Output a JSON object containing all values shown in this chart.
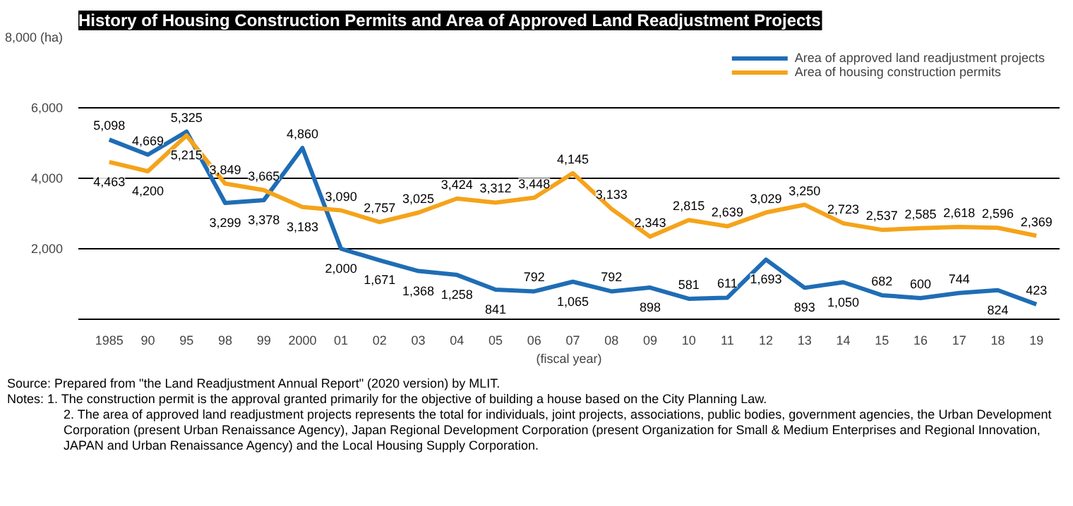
{
  "chart_data": {
    "type": "line",
    "title": "History of Housing Construction Permits and Area of Approved Land Readjustment Projects",
    "xlabel": "(fiscal year)",
    "categories": [
      "1985",
      "90",
      "95",
      "98",
      "99",
      "2000",
      "01",
      "02",
      "03",
      "04",
      "05",
      "06",
      "07",
      "08",
      "09",
      "10",
      "11",
      "12",
      "13",
      "14",
      "15",
      "16",
      "17",
      "18",
      "19"
    ],
    "series": [
      {
        "name": "Area of approved land readjustment projects",
        "color": "#1f6db5",
        "values": [
          5098,
          4669,
          5325,
          3299,
          3378,
          4860,
          2000,
          1671,
          1368,
          1258,
          841,
          792,
          1065,
          792,
          898,
          581,
          611,
          1693,
          893,
          1050,
          682,
          600,
          744,
          824,
          423
        ],
        "value_labels": [
          "5,098",
          "4,669",
          "5,325",
          "3,299",
          "3,378",
          "4,860",
          "2,000",
          "1,671",
          "1,368",
          "1,258",
          "841",
          "792",
          "1,065",
          "792",
          "898",
          "581",
          "611",
          "1,693",
          "893",
          "1,050",
          "682",
          "600",
          "744",
          "824",
          "423"
        ]
      },
      {
        "name": "Area of housing construction permits",
        "color": "#f5a31a",
        "values": [
          4463,
          4200,
          5215,
          3849,
          3665,
          3183,
          3090,
          2757,
          3025,
          3424,
          3312,
          3448,
          4145,
          3133,
          2343,
          2815,
          2639,
          3029,
          3250,
          2723,
          2537,
          2585,
          2618,
          2596,
          2369
        ],
        "value_labels": [
          "4,463",
          "4,200",
          "5,215",
          "3,849",
          "3,665",
          "3,183",
          "3,090",
          "2,757",
          "3,025",
          "3,424",
          "3,312",
          "3,448",
          "4,145",
          "3,133",
          "2,343",
          "2,815",
          "2,639",
          "3,029",
          "3,250",
          "2,723",
          "2,537",
          "2,585",
          "2,618",
          "2,596",
          "2,369"
        ]
      }
    ],
    "ylim": [
      0,
      8000
    ],
    "yticks": [
      {
        "value": 2000,
        "label": "2,000"
      },
      {
        "value": 4000,
        "label": "4,000"
      },
      {
        "value": 6000,
        "label": "6,000"
      },
      {
        "value": 8000,
        "label": "8,000 (ha)"
      }
    ],
    "grid": "y",
    "legend": "top right",
    "marker": "none",
    "line_style": "solid",
    "annotations": [
      "Source: Prepared from \"the Land Readjustment Annual Report\" (2020 version) by MLIT.",
      "Notes: 1. The construction permit is the approval granted primarily for the objective of building a house based on the City Planning Law.",
      "2. The area of approved land readjustment projects represents the total for individuals, joint projects, associations, public bodies, government agencies, the Urban Development Corporation (present Urban Renaissance Agency), Japan Regional Development Corporation (present Organization for Small & Medium Enterprises and Regional Innovation, JAPAN and Urban Renaissance Agency) and the Local Housing Supply Corporation."
    ]
  }
}
